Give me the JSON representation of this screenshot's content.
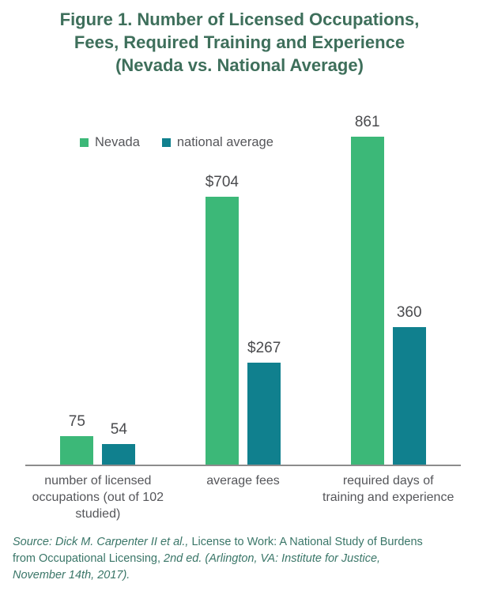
{
  "header": {
    "title_text": "Figure 1. Number of Licensed Occupations,\nFees, Required Training and Experience\n(Nevada vs. National Average)"
  },
  "chart_data": {
    "type": "bar",
    "categories": [
      "number of licensed\noccupations (out of 102\nstudied)",
      "average fees",
      "required days of\ntraining and experience"
    ],
    "series": [
      {
        "name": "Nevada",
        "color": "#3cb878",
        "values": [
          75,
          704,
          861
        ],
        "value_labels": [
          "75",
          "$704",
          "861"
        ]
      },
      {
        "name": "national average",
        "color": "#10808e",
        "values": [
          54,
          267,
          360
        ],
        "value_labels": [
          "54",
          "$267",
          "360"
        ]
      }
    ],
    "title": "Figure 1. Number of Licensed Occupations, Fees, Required Training and Experience (Nevada vs. National Average)",
    "xlabel": "",
    "ylabel": "",
    "ylim": [
      0,
      861
    ],
    "grid": false,
    "legend_position": "top-left",
    "value_labels_shown": true
  },
  "source": {
    "lines": [
      [
        {
          "text": "Source: Dick M. Carpenter II et al., ",
          "italic": true
        },
        {
          "text": "License to Work: A National Study of Burdens",
          "italic": false
        }
      ],
      [
        {
          "text": "from Occupational Licensing, ",
          "italic": false
        },
        {
          "text": "2nd ed. (Arlington, VA: Institute for Justice,",
          "italic": true
        }
      ],
      [
        {
          "text": "November 14th, 2017).",
          "italic": true
        }
      ]
    ]
  },
  "colors": {
    "title_text": "#3e6f5b",
    "source_text": "#3a7668",
    "axis_line": "#8c8c8c",
    "value_label_text": "#4a4b4e",
    "category_label_text": "#55565a",
    "nevada_bar": "#3cb878",
    "national_average_bar": "#10808e"
  }
}
